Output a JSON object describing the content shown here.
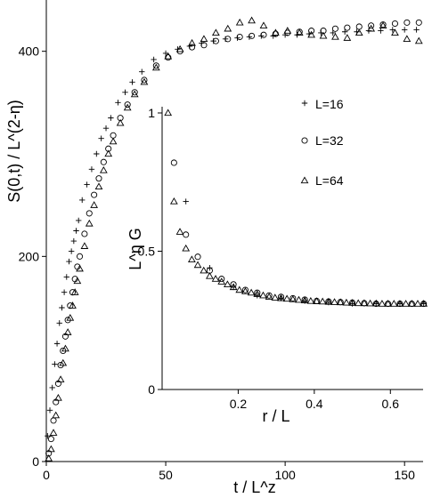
{
  "chart_data": [
    {
      "type": "scatter",
      "xlabel": "t / L^z",
      "ylabel": "S(0,t) / L^(2-η)",
      "xlim": [
        0,
        160
      ],
      "ylim": [
        0,
        450
      ],
      "x_ticks": [
        "0",
        "50",
        "100",
        "150"
      ],
      "y_ticks": [
        "0",
        "200",
        "400"
      ],
      "x_tick_values": [
        0,
        50,
        100,
        150
      ],
      "y_tick_values": [
        0,
        200,
        400
      ],
      "grid": false,
      "legend_position": "inside-right",
      "series": [
        {
          "name": "L=16",
          "marker": "plus",
          "x": [
            0.5,
            1.5,
            2.5,
            3.5,
            4.5,
            5.5,
            6.5,
            7.5,
            8.5,
            9.5,
            10.5,
            11.5,
            12.5,
            13.5,
            15,
            17,
            19,
            21,
            23,
            25,
            27,
            30,
            33,
            36,
            40,
            45,
            50,
            55,
            60,
            65,
            70,
            75,
            80,
            85,
            90,
            95,
            100,
            105,
            110,
            115,
            120,
            125,
            130,
            135,
            140,
            145,
            150,
            155
          ],
          "y": [
            25,
            50,
            72,
            95,
            115,
            135,
            150,
            165,
            180,
            195,
            205,
            215,
            225,
            235,
            255,
            270,
            285,
            300,
            315,
            325,
            335,
            350,
            360,
            370,
            380,
            392,
            398,
            402,
            405,
            408,
            410,
            412,
            413,
            414,
            415,
            415,
            416,
            416,
            417,
            418,
            418,
            419,
            419,
            420,
            420,
            421,
            421,
            421
          ]
        },
        {
          "name": "L=32",
          "marker": "circle",
          "x": [
            1,
            2,
            3,
            4,
            5,
            6,
            7,
            8,
            9,
            10,
            11,
            12,
            13,
            14,
            16,
            18,
            20,
            22,
            24,
            26,
            28,
            31,
            34,
            37,
            41,
            46,
            51,
            56,
            61,
            66,
            71,
            76,
            81,
            86,
            91,
            96,
            101,
            106,
            111,
            116,
            121,
            126,
            131,
            136,
            141,
            146,
            151,
            156
          ],
          "y": [
            8,
            22,
            40,
            58,
            76,
            94,
            108,
            122,
            138,
            152,
            165,
            178,
            190,
            200,
            222,
            242,
            260,
            276,
            292,
            305,
            318,
            335,
            348,
            360,
            372,
            386,
            394,
            400,
            404,
            406,
            410,
            412,
            414,
            415,
            416,
            417,
            418,
            419,
            420,
            420,
            422,
            423,
            424,
            425,
            426,
            427,
            428,
            428
          ]
        },
        {
          "name": "L=64",
          "marker": "triangle",
          "x": [
            1,
            2,
            3,
            4,
            5,
            6,
            7,
            8,
            9,
            10,
            11,
            12,
            13,
            14,
            16,
            18,
            20,
            22,
            24,
            26,
            28,
            31,
            34,
            37,
            41,
            46,
            51,
            56,
            61,
            66,
            71,
            76,
            81,
            86,
            91,
            96,
            101,
            106,
            111,
            116,
            121,
            126,
            131,
            136,
            141,
            146,
            151,
            156
          ],
          "y": [
            3,
            12,
            28,
            45,
            62,
            80,
            96,
            110,
            126,
            140,
            152,
            165,
            176,
            188,
            210,
            232,
            250,
            268,
            284,
            300,
            312,
            330,
            345,
            358,
            370,
            384,
            395,
            402,
            408,
            412,
            418,
            422,
            428,
            430,
            425,
            418,
            420,
            418,
            416,
            415,
            414,
            413,
            418,
            422,
            425,
            418,
            412,
            410
          ]
        }
      ]
    },
    {
      "type": "scatter",
      "xlabel": "r / L",
      "ylabel": "L^η G",
      "xlim": [
        0,
        0.7
      ],
      "ylim": [
        0,
        1
      ],
      "x_ticks": [
        "0.2",
        "0.4",
        "0.6"
      ],
      "y_ticks": [
        "0",
        "0.5",
        "1"
      ],
      "x_tick_values": [
        0.2,
        0.4,
        0.6
      ],
      "y_tick_values": [
        0,
        0.5,
        1
      ],
      "grid": false,
      "series": [
        {
          "name": "L=16",
          "marker": "plus",
          "x": [
            0.0625,
            0.125,
            0.1875,
            0.25,
            0.3125,
            0.375,
            0.4375,
            0.5,
            0.5625,
            0.625,
            0.6875
          ],
          "y": [
            0.68,
            0.44,
            0.37,
            0.34,
            0.33,
            0.32,
            0.315,
            0.31,
            0.31,
            0.31,
            0.31
          ]
        },
        {
          "name": "L=32",
          "marker": "circle",
          "x": [
            0.03125,
            0.0625,
            0.09375,
            0.125,
            0.15625,
            0.1875,
            0.21875,
            0.25,
            0.28125,
            0.3125,
            0.34375,
            0.375,
            0.40625,
            0.4375,
            0.46875,
            0.5,
            0.53125,
            0.5625,
            0.59375,
            0.625,
            0.65625,
            0.6875
          ],
          "y": [
            0.82,
            0.56,
            0.48,
            0.43,
            0.4,
            0.38,
            0.36,
            0.35,
            0.34,
            0.335,
            0.33,
            0.325,
            0.32,
            0.318,
            0.316,
            0.314,
            0.312,
            0.31,
            0.31,
            0.31,
            0.31,
            0.31
          ]
        },
        {
          "name": "L=64",
          "marker": "triangle",
          "x": [
            0.015625,
            0.03125,
            0.046875,
            0.0625,
            0.078125,
            0.09375,
            0.109375,
            0.125,
            0.140625,
            0.15625,
            0.171875,
            0.1875,
            0.203125,
            0.21875,
            0.234375,
            0.25,
            0.265625,
            0.28125,
            0.296875,
            0.3125,
            0.328125,
            0.34375,
            0.359375,
            0.375,
            0.390625,
            0.40625,
            0.421875,
            0.4375,
            0.453125,
            0.46875,
            0.484375,
            0.5,
            0.515625,
            0.53125,
            0.546875,
            0.5625,
            0.578125,
            0.59375,
            0.609375,
            0.625,
            0.640625,
            0.65625,
            0.671875,
            0.6875
          ],
          "y": [
            1.0,
            0.68,
            0.57,
            0.51,
            0.47,
            0.45,
            0.43,
            0.41,
            0.4,
            0.39,
            0.38,
            0.37,
            0.36,
            0.355,
            0.35,
            0.345,
            0.34,
            0.335,
            0.332,
            0.33,
            0.328,
            0.326,
            0.324,
            0.322,
            0.32,
            0.319,
            0.318,
            0.317,
            0.316,
            0.315,
            0.314,
            0.313,
            0.312,
            0.312,
            0.311,
            0.311,
            0.31,
            0.31,
            0.31,
            0.31,
            0.31,
            0.31,
            0.31,
            0.31
          ]
        }
      ]
    }
  ]
}
